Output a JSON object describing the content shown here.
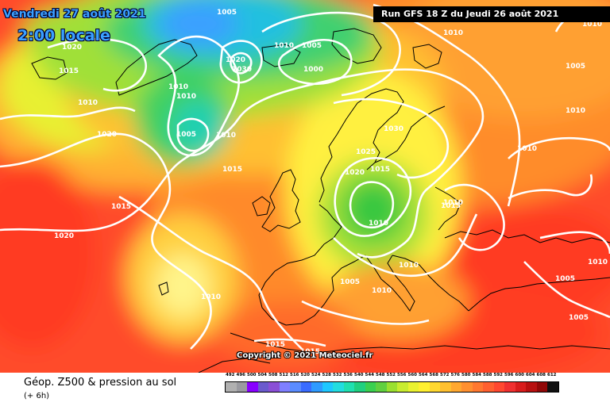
{
  "header": {
    "date": "Vendredi 27 août 2021",
    "time": "2:00 locale",
    "run": "Run GFS 18 Z du Jeudi 26 août 2021"
  },
  "copyright": "Copyright © 2021 Meteociel.fr",
  "footer": {
    "title": "Géop. Z500 & pression au sol",
    "subtitle": "(+ 6h)"
  },
  "scale": {
    "labels": [
      "492",
      "496",
      "500",
      "504",
      "508",
      "512",
      "516",
      "520",
      "524",
      "528",
      "532",
      "536",
      "540",
      "544",
      "548",
      "552",
      "556",
      "560",
      "564",
      "568",
      "572",
      "576",
      "580",
      "584",
      "588",
      "592",
      "596",
      "600",
      "604",
      "608",
      "612"
    ],
    "colors": [
      "#b0b0b0",
      "#9a9aa0",
      "#80ff",
      "#6a5acd",
      "#8a4fd6",
      "#7f7fff",
      "#5a8cff",
      "#3a6cff",
      "#2f9bff",
      "#1ec8ff",
      "#22dde0",
      "#20e0b0",
      "#20d080",
      "#3ad050",
      "#60d040",
      "#9ae030",
      "#c8ec30",
      "#eaf230",
      "#fff030",
      "#ffd830",
      "#ffc030",
      "#ffa830",
      "#ff9030",
      "#ff7830",
      "#ff6030",
      "#ff4830",
      "#f03030",
      "#d81c1c",
      "#b81010",
      "#900808",
      "#101010"
    ]
  },
  "isobars": [
    "1005",
    "1020",
    "1015",
    "1010",
    "1010",
    "1005",
    "1000",
    "1010",
    "1020",
    "1030",
    "1010",
    "1010",
    "1005",
    "1015",
    "1010",
    "1020",
    "1015",
    "1010",
    "1010",
    "1015",
    "1025",
    "1030",
    "1020",
    "1015",
    "1010",
    "1010",
    "1010",
    "1020",
    "1005",
    "1010",
    "1005",
    "1015",
    "1015",
    "1010",
    "1005",
    "1005",
    "1010",
    "1010"
  ]
}
